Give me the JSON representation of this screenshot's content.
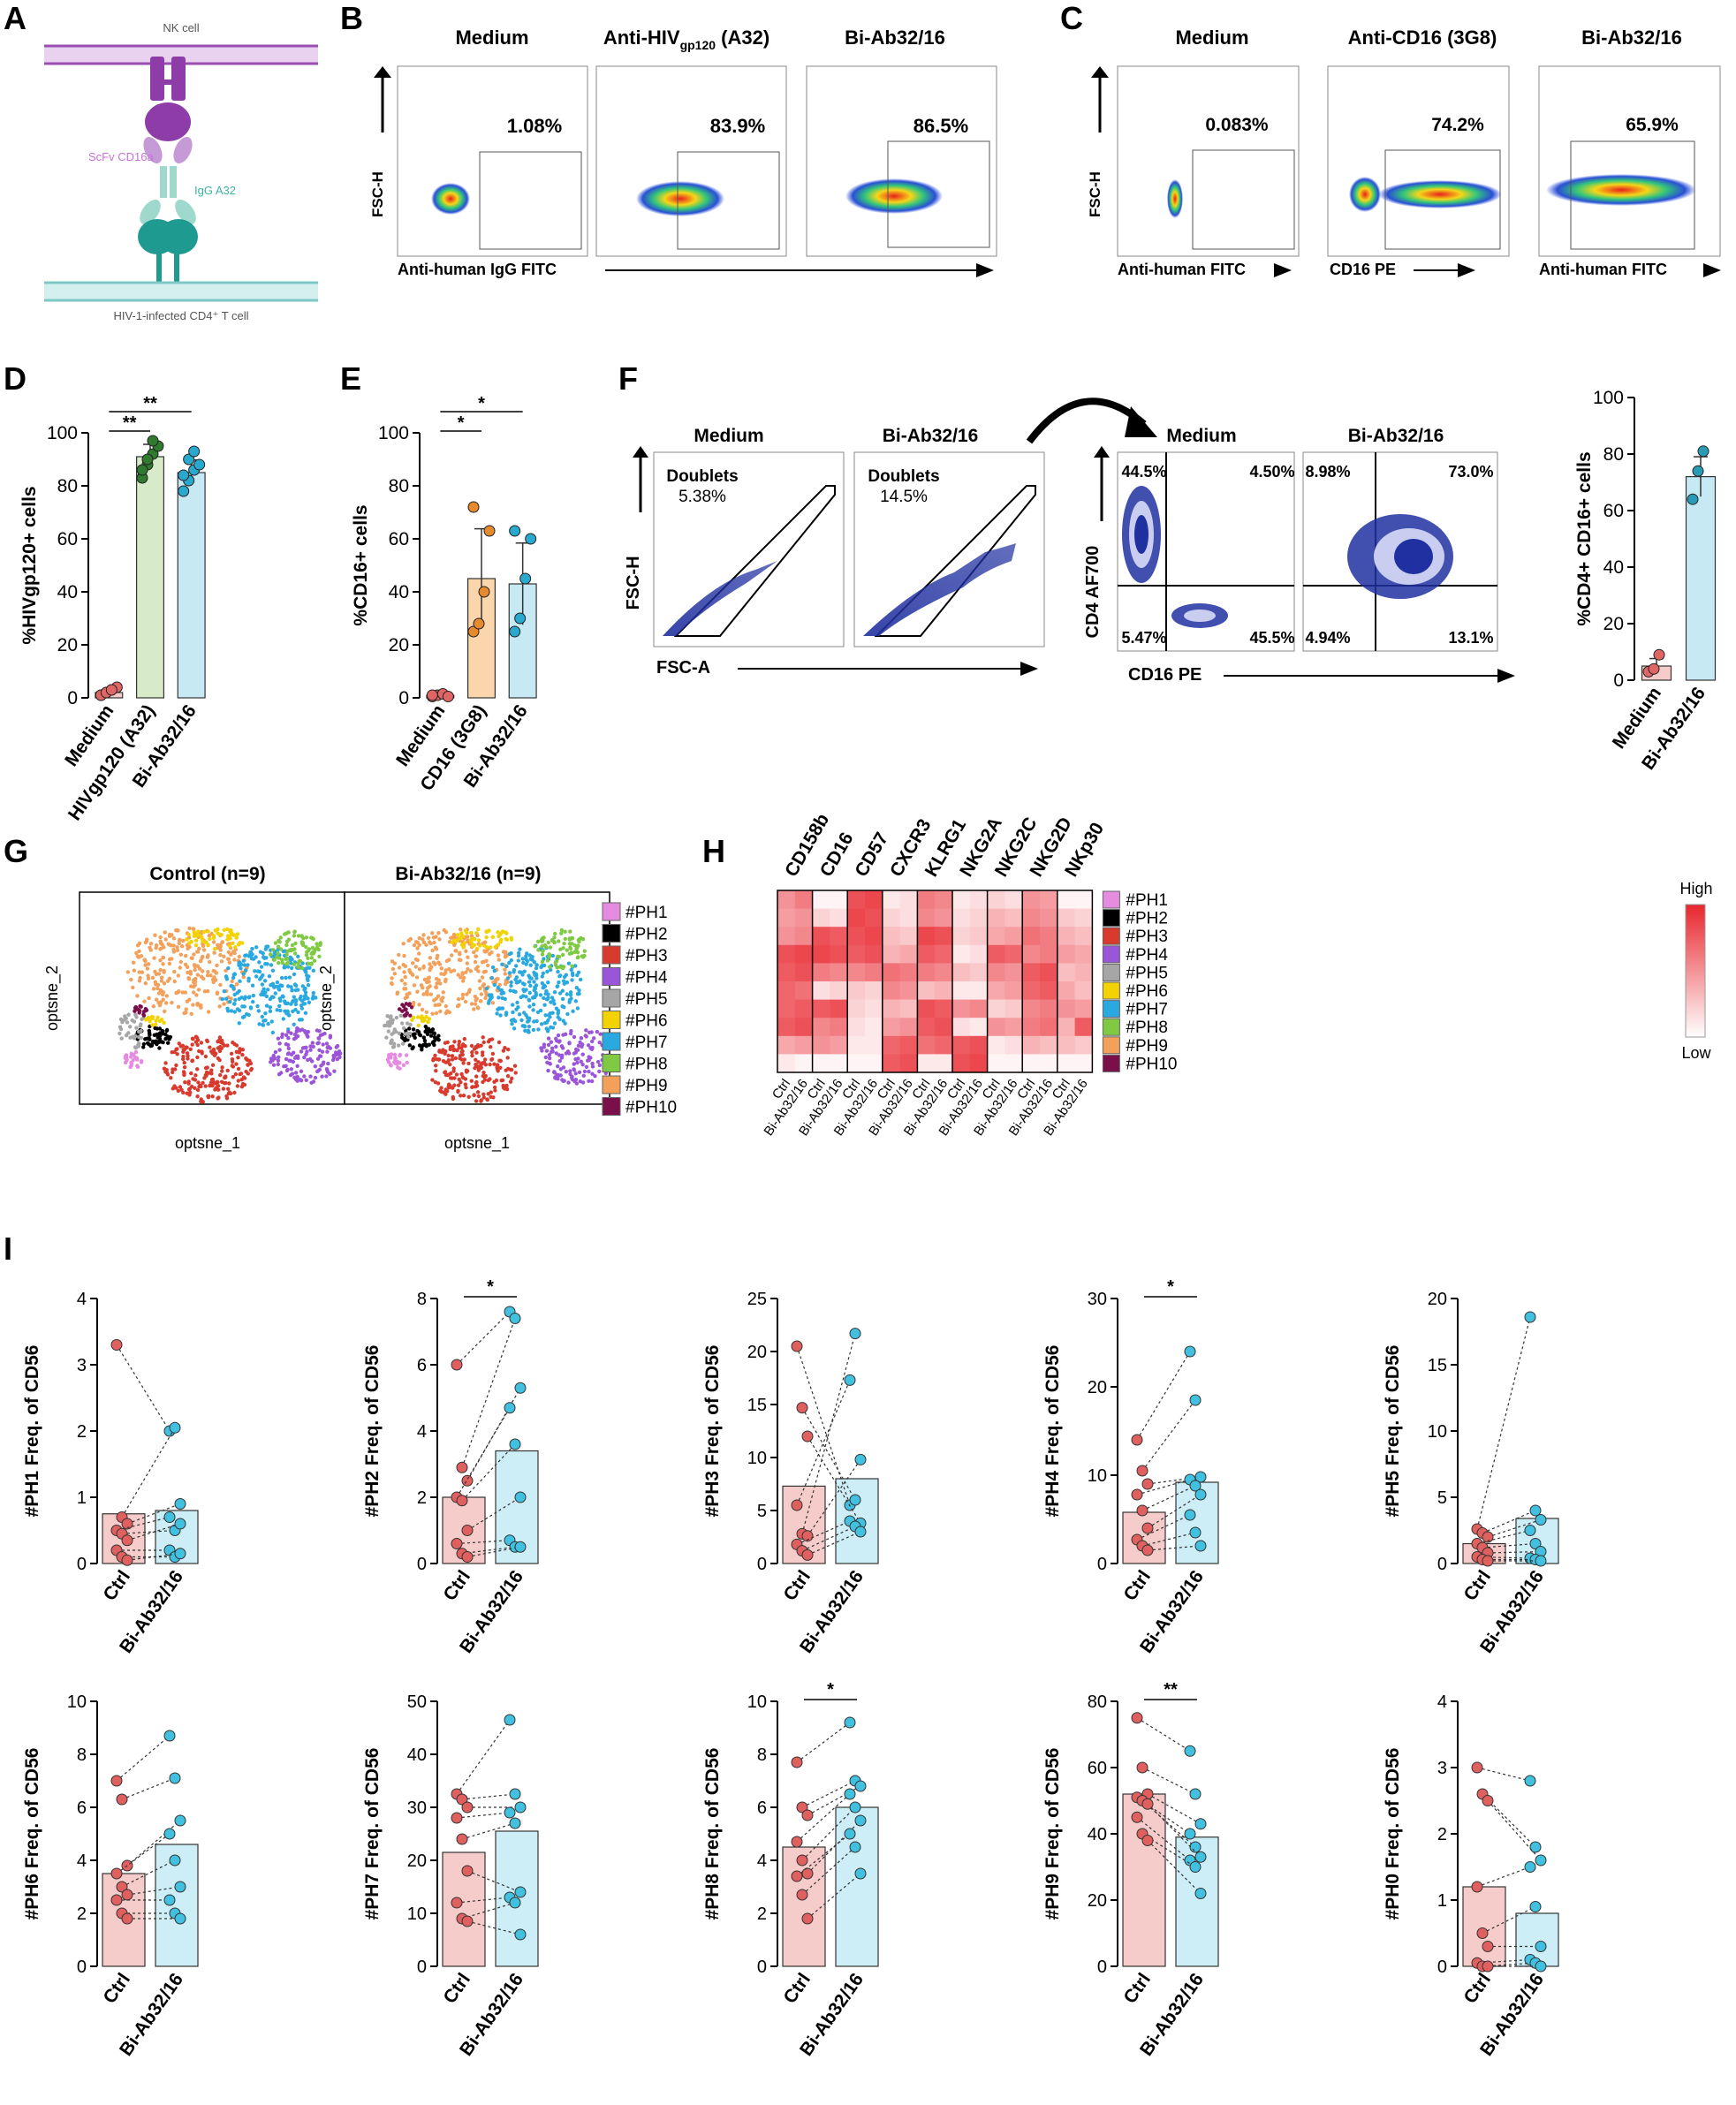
{
  "panel_letters": [
    "A",
    "B",
    "C",
    "D",
    "E",
    "F",
    "G",
    "H",
    "I"
  ],
  "A": {
    "nk_label": "NK cell",
    "scfv_label": "ScFv CD16a",
    "igg_label": "IgG A32",
    "t_label": "HIV-1-infected CD4⁺ T cell"
  },
  "B": {
    "plots": [
      {
        "title": "Medium",
        "pct": "1.08%"
      },
      {
        "title": "Anti-HIV",
        "title_sub": "gp120",
        "title_tail": " (A32)",
        "pct": "83.9%"
      },
      {
        "title": "Bi-Ab32/16",
        "pct": "86.5%"
      }
    ],
    "ylabel": "FSC-H",
    "xlabel": "Anti-human IgG FITC"
  },
  "C": {
    "plots": [
      {
        "title": "Medium",
        "pct": "0.083%",
        "xlabel": "Anti-human FITC"
      },
      {
        "title": "Anti-CD16 (3G8)",
        "pct": "74.2%",
        "xlabel": "CD16 PE"
      },
      {
        "title": "Bi-Ab32/16",
        "pct": "65.9%",
        "xlabel": "Anti-human FITC"
      }
    ],
    "ylabel": "FSC-H"
  },
  "F": {
    "left_plots": [
      {
        "title": "Medium",
        "gate": "Doublets",
        "pct": "5.38%"
      },
      {
        "title": "Bi-Ab32/16",
        "gate": "Doublets",
        "pct": "14.5%"
      }
    ],
    "left_ylabel": "FSC-H",
    "left_xlabel": "FSC-A",
    "quad_plots": [
      {
        "title": "Medium",
        "q": [
          "44.5%",
          "4.50%",
          "5.47%",
          "45.5%"
        ]
      },
      {
        "title": "Bi-Ab32/16",
        "q": [
          "8.98%",
          "73.0%",
          "4.94%",
          "13.1%"
        ]
      }
    ],
    "quad_ylabel": "CD4 AF700",
    "quad_xlabel": "CD16 PE"
  },
  "G": {
    "plots": [
      {
        "title": "Control (n=9)"
      },
      {
        "title": "Bi-Ab32/16 (n=9)"
      }
    ],
    "xlabel": "optsne_1",
    "ylabel": "optsne_2",
    "legend": [
      "#PH1",
      "#PH2",
      "#PH3",
      "#PH4",
      "#PH5",
      "#PH6",
      "#PH7",
      "#PH8",
      "#PH9",
      "#PH10"
    ],
    "colors": [
      "#e58be0",
      "#000000",
      "#d83a2e",
      "#9b55d8",
      "#a6a6a6",
      "#f2d200",
      "#2aa9e0",
      "#7fc943",
      "#f2a05a",
      "#7b0f4a"
    ]
  },
  "H": {
    "markers": [
      "CD158b",
      "CD16",
      "CD57",
      "CXCR3",
      "KLRG1",
      "NKG2A",
      "NKG2C",
      "NKG2D",
      "NKp30"
    ],
    "rows": [
      "#PH1",
      "#PH2",
      "#PH3",
      "#PH4",
      "#PH5",
      "#PH6",
      "#PH7",
      "#PH8",
      "#PH9",
      "#PH10"
    ],
    "col_labels": [
      "Ctrl",
      "Bi-Ab32/16"
    ],
    "scale_high": "High",
    "scale_low": "Low",
    "values": [
      [
        0.5,
        0.6,
        0.05,
        0.05,
        0.8,
        0.85,
        0.1,
        0.15,
        0.6,
        0.55,
        0.1,
        0.15,
        0.2,
        0.15,
        0.5,
        0.45,
        0.05,
        0.05
      ],
      [
        0.45,
        0.5,
        0.2,
        0.15,
        0.85,
        0.8,
        0.2,
        0.15,
        0.55,
        0.5,
        0.15,
        0.2,
        0.35,
        0.3,
        0.55,
        0.5,
        0.25,
        0.2
      ],
      [
        0.5,
        0.55,
        0.8,
        0.75,
        0.8,
        0.85,
        0.3,
        0.25,
        0.85,
        0.8,
        0.2,
        0.25,
        0.4,
        0.45,
        0.65,
        0.6,
        0.35,
        0.3
      ],
      [
        0.8,
        0.85,
        0.85,
        0.8,
        0.75,
        0.8,
        0.35,
        0.4,
        0.75,
        0.7,
        0.1,
        0.15,
        0.75,
        0.7,
        0.55,
        0.6,
        0.45,
        0.4
      ],
      [
        0.75,
        0.8,
        0.6,
        0.55,
        0.55,
        0.6,
        0.65,
        0.6,
        0.6,
        0.55,
        0.3,
        0.25,
        0.55,
        0.5,
        0.75,
        0.8,
        0.3,
        0.35
      ],
      [
        0.7,
        0.65,
        0.15,
        0.2,
        0.25,
        0.2,
        0.55,
        0.5,
        0.3,
        0.35,
        0.1,
        0.1,
        0.4,
        0.45,
        0.7,
        0.75,
        0.4,
        0.3
      ],
      [
        0.7,
        0.75,
        0.75,
        0.8,
        0.2,
        0.15,
        0.35,
        0.3,
        0.8,
        0.75,
        0.5,
        0.55,
        0.2,
        0.25,
        0.55,
        0.6,
        0.5,
        0.45
      ],
      [
        0.75,
        0.8,
        0.55,
        0.6,
        0.15,
        0.1,
        0.45,
        0.5,
        0.75,
        0.8,
        0.15,
        0.1,
        0.5,
        0.45,
        0.6,
        0.65,
        0.35,
        0.75
      ],
      [
        0.4,
        0.45,
        0.5,
        0.45,
        0.1,
        0.1,
        0.7,
        0.75,
        0.65,
        0.7,
        0.75,
        0.8,
        0.1,
        0.15,
        0.35,
        0.3,
        0.3,
        0.25
      ],
      [
        0.1,
        0.05,
        0.05,
        0.05,
        0.05,
        0.05,
        0.75,
        0.8,
        0.1,
        0.1,
        0.8,
        0.85,
        0.05,
        0.05,
        0.05,
        0.05,
        0.05,
        0.05
      ]
    ]
  },
  "chart_data": [
    {
      "panel": "D",
      "type": "bar",
      "ylabel": "%HIVgp120+ cells",
      "ylim": [
        0,
        100
      ],
      "yticks": [
        0,
        20,
        40,
        60,
        80,
        100
      ],
      "categories": [
        "Medium",
        "HIVgp120 (A32)",
        "Bi-Ab32/16"
      ],
      "values": [
        2,
        91,
        85
      ],
      "points": [
        [
          1,
          2,
          3,
          4,
          1,
          2,
          3
        ],
        [
          83,
          88,
          92,
          95,
          86,
          90,
          97
        ],
        [
          78,
          82,
          86,
          88,
          84,
          90,
          93
        ]
      ],
      "sig": [
        {
          "pair": [
            0,
            1
          ],
          "label": "**"
        },
        {
          "pair": [
            0,
            2
          ],
          "label": "**"
        }
      ]
    },
    {
      "panel": "E",
      "type": "bar",
      "ylabel": "%CD16+ cells",
      "ylim": [
        0,
        100
      ],
      "yticks": [
        0,
        20,
        40,
        60,
        80,
        100
      ],
      "categories": [
        "Medium",
        "CD16 (3G8)",
        "Bi-Ab32/16"
      ],
      "values": [
        1,
        45,
        43
      ],
      "points": [
        [
          0.5,
          1,
          1.5,
          0.5,
          1
        ],
        [
          25,
          28,
          40,
          63,
          72
        ],
        [
          25,
          30,
          45,
          60,
          63
        ]
      ],
      "sig": [
        {
          "pair": [
            0,
            1
          ],
          "label": "*"
        },
        {
          "pair": [
            0,
            2
          ],
          "label": "*"
        }
      ]
    },
    {
      "panel": "F",
      "type": "bar",
      "ylabel": "%CD4+ CD16+ cells",
      "ylim": [
        0,
        100
      ],
      "yticks": [
        0,
        20,
        40,
        60,
        80,
        100
      ],
      "categories": [
        "Medium",
        "Bi-Ab32/16"
      ],
      "values": [
        5,
        72
      ],
      "points": [
        [
          3,
          4,
          9
        ],
        [
          64,
          74,
          81
        ]
      ]
    },
    {
      "panel": "I",
      "type": "bar",
      "ylabel": "#PH1 Freq. of CD56",
      "ylim": [
        0,
        4
      ],
      "yticks": [
        0,
        1,
        2,
        3,
        4
      ],
      "categories": [
        "Ctrl",
        "Bi-Ab32/16"
      ],
      "values": [
        0.75,
        0.8
      ],
      "pairs": [
        [
          3.3,
          2.0
        ],
        [
          0.7,
          2.05
        ],
        [
          0.6,
          0.9
        ],
        [
          0.5,
          0.7
        ],
        [
          0.45,
          0.5
        ],
        [
          0.35,
          0.6
        ],
        [
          0.2,
          0.2
        ],
        [
          0.1,
          0.1
        ],
        [
          0.05,
          0.15
        ]
      ]
    },
    {
      "panel": "I",
      "type": "bar",
      "ylabel": "#PH2 Freq. of CD56",
      "ylim": [
        0,
        8
      ],
      "yticks": [
        0,
        2,
        4,
        6,
        8
      ],
      "categories": [
        "Ctrl",
        "Bi-Ab32/16"
      ],
      "values": [
        2.0,
        3.4
      ],
      "sig_label": "*",
      "pairs": [
        [
          6.0,
          7.6
        ],
        [
          2.9,
          7.4
        ],
        [
          2.5,
          5.3
        ],
        [
          2.0,
          4.7
        ],
        [
          1.9,
          3.6
        ],
        [
          1.0,
          2.0
        ],
        [
          0.6,
          0.7
        ],
        [
          0.3,
          0.5
        ],
        [
          0.2,
          0.5
        ]
      ]
    },
    {
      "panel": "I",
      "type": "bar",
      "ylabel": "#PH3 Freq. of CD56",
      "ylim": [
        0,
        25
      ],
      "yticks": [
        0,
        5,
        10,
        15,
        20,
        25
      ],
      "categories": [
        "Ctrl",
        "Bi-Ab32/16"
      ],
      "values": [
        7.3,
        8.0
      ],
      "pairs": [
        [
          20.5,
          5.5
        ],
        [
          14.7,
          6.0
        ],
        [
          12.0,
          3.8
        ],
        [
          5.5,
          17.3
        ],
        [
          2.8,
          21.7
        ],
        [
          2.6,
          9.8
        ],
        [
          1.8,
          4.0
        ],
        [
          1.2,
          3.5
        ],
        [
          0.8,
          3.0
        ]
      ]
    },
    {
      "panel": "I",
      "type": "bar",
      "ylabel": "#PH4 Freq. of CD56",
      "ylim": [
        0,
        30
      ],
      "yticks": [
        0,
        10,
        20,
        30
      ],
      "categories": [
        "Ctrl",
        "Bi-Ab32/16"
      ],
      "values": [
        5.8,
        9.2
      ],
      "sig_label": "*",
      "pairs": [
        [
          14.0,
          24.0
        ],
        [
          10.5,
          18.5
        ],
        [
          9.0,
          9.8
        ],
        [
          7.8,
          9.5
        ],
        [
          6.0,
          8.8
        ],
        [
          4.0,
          7.8
        ],
        [
          2.7,
          5.5
        ],
        [
          2.0,
          3.5
        ],
        [
          1.5,
          2.0
        ]
      ]
    },
    {
      "panel": "I",
      "type": "bar",
      "ylabel": "#PH5 Freq. of CD56",
      "ylim": [
        0,
        20
      ],
      "yticks": [
        0,
        5,
        10,
        15,
        20
      ],
      "categories": [
        "Ctrl",
        "Bi-Ab32/16"
      ],
      "values": [
        1.5,
        3.4
      ],
      "pairs": [
        [
          2.6,
          18.6
        ],
        [
          2.3,
          4.0
        ],
        [
          2.0,
          3.3
        ],
        [
          1.5,
          2.5
        ],
        [
          1.2,
          1.5
        ],
        [
          0.8,
          0.9
        ],
        [
          0.5,
          0.4
        ],
        [
          0.3,
          0.3
        ],
        [
          0.2,
          0.2
        ]
      ]
    },
    {
      "panel": "I",
      "type": "bar",
      "ylabel": "#PH6 Freq. of CD56",
      "ylim": [
        0,
        10
      ],
      "yticks": [
        0,
        2,
        4,
        6,
        8,
        10
      ],
      "categories": [
        "Ctrl",
        "Bi-Ab32/16"
      ],
      "values": [
        3.5,
        4.6
      ],
      "pairs": [
        [
          7.0,
          8.7
        ],
        [
          6.3,
          7.1
        ],
        [
          3.8,
          5.5
        ],
        [
          3.5,
          5.0
        ],
        [
          3.0,
          4.0
        ],
        [
          2.7,
          3.0
        ],
        [
          2.5,
          2.5
        ],
        [
          2.0,
          2.0
        ],
        [
          1.8,
          1.8
        ]
      ]
    },
    {
      "panel": "I",
      "type": "bar",
      "ylabel": "#PH7 Freq. of CD56",
      "ylim": [
        0,
        50
      ],
      "yticks": [
        0,
        10,
        20,
        30,
        40,
        50
      ],
      "categories": [
        "Ctrl",
        "Bi-Ab32/16"
      ],
      "values": [
        21.5,
        25.5
      ],
      "pairs": [
        [
          32.5,
          46.5
        ],
        [
          31.5,
          32.5
        ],
        [
          30.0,
          30.0
        ],
        [
          28.0,
          29.0
        ],
        [
          24.0,
          27.0
        ],
        [
          18.0,
          14.0
        ],
        [
          12.0,
          13.0
        ],
        [
          9.0,
          12.0
        ],
        [
          8.5,
          6.0
        ]
      ]
    },
    {
      "panel": "I",
      "type": "bar",
      "ylabel": "#PH8 Freq. of CD56",
      "ylim": [
        0,
        10
      ],
      "yticks": [
        0,
        2,
        4,
        6,
        8,
        10
      ],
      "categories": [
        "Ctrl",
        "Bi-Ab32/16"
      ],
      "values": [
        4.5,
        6.0
      ],
      "sig_label": "*",
      "pairs": [
        [
          7.7,
          9.2
        ],
        [
          6.0,
          7.0
        ],
        [
          5.7,
          6.8
        ],
        [
          4.7,
          6.5
        ],
        [
          4.0,
          6.0
        ],
        [
          3.5,
          5.5
        ],
        [
          3.4,
          5.0
        ],
        [
          2.7,
          4.5
        ],
        [
          1.8,
          3.5
        ]
      ]
    },
    {
      "panel": "I",
      "type": "bar",
      "ylabel": "#PH9 Freq. of CD56",
      "ylim": [
        0,
        80
      ],
      "yticks": [
        0,
        20,
        40,
        60,
        80
      ],
      "categories": [
        "Ctrl",
        "Bi-Ab32/16"
      ],
      "values": [
        52,
        39
      ],
      "sig_label": "**",
      "pairs": [
        [
          75,
          65
        ],
        [
          60,
          52
        ],
        [
          52,
          43
        ],
        [
          51,
          40
        ],
        [
          50,
          36
        ],
        [
          49,
          33
        ],
        [
          45,
          32
        ],
        [
          40,
          30
        ],
        [
          38,
          22
        ]
      ]
    },
    {
      "panel": "I",
      "type": "bar",
      "ylabel": "#PH0 Freq. of CD56",
      "ylim": [
        0,
        4
      ],
      "yticks": [
        0,
        1,
        2,
        3,
        4
      ],
      "categories": [
        "Ctrl",
        "Bi-Ab32/16"
      ],
      "values": [
        1.2,
        0.8
      ],
      "pairs": [
        [
          3.0,
          2.8
        ],
        [
          2.6,
          1.8
        ],
        [
          2.5,
          1.6
        ],
        [
          1.2,
          1.5
        ],
        [
          0.5,
          0.9
        ],
        [
          0.3,
          0.3
        ],
        [
          0.05,
          0.1
        ],
        [
          0.0,
          0.05
        ],
        [
          0.0,
          0.0
        ]
      ]
    }
  ]
}
